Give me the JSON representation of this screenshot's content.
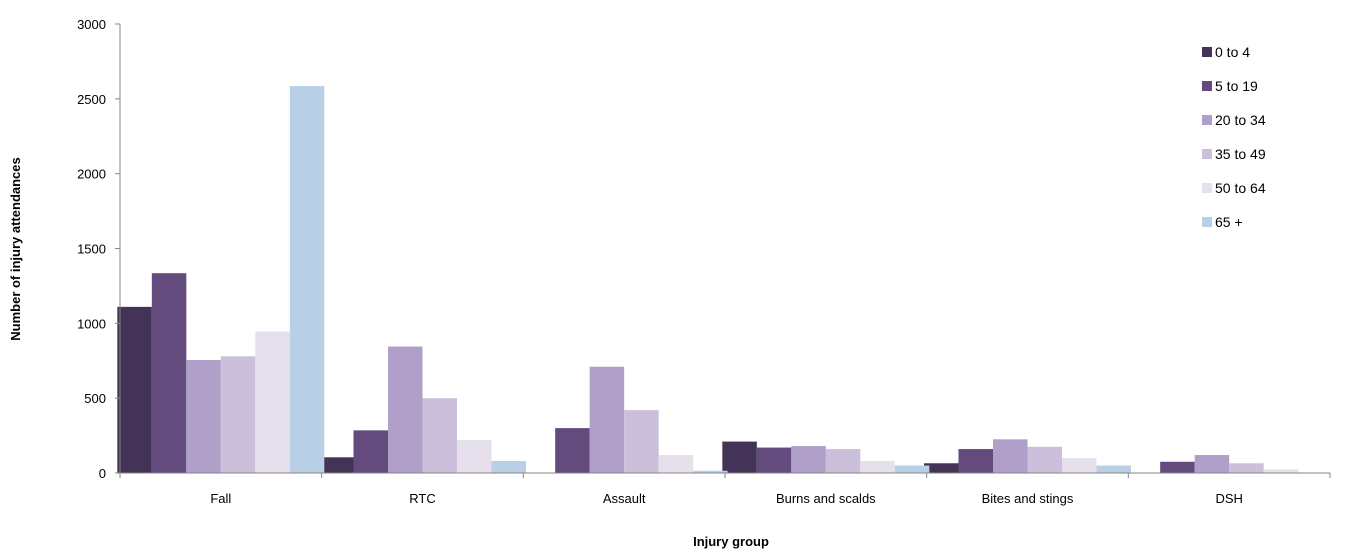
{
  "chart_data": {
    "type": "bar",
    "title": "",
    "xlabel": "Injury group",
    "ylabel": "Number of injury attendances",
    "ylim": [
      0,
      3000
    ],
    "yticks": [
      0,
      500,
      1000,
      1500,
      2000,
      2500,
      3000
    ],
    "grid": false,
    "legend_position": "right",
    "categories": [
      "Fall",
      "RTC",
      "Assault",
      "Burns and scalds",
      "Bites and stings",
      "DSH"
    ],
    "series": [
      {
        "name": "0 to 4",
        "color": "#433356",
        "values": [
          1110,
          105,
          0,
          210,
          65,
          0
        ]
      },
      {
        "name": "5 to 19",
        "color": "#634b7d",
        "values": [
          1335,
          285,
          300,
          170,
          160,
          75
        ]
      },
      {
        "name": "20 to 34",
        "color": "#b09fc8",
        "values": [
          755,
          845,
          710,
          180,
          225,
          120
        ]
      },
      {
        "name": "35 to 49",
        "color": "#cbbfdc",
        "values": [
          780,
          500,
          420,
          160,
          175,
          65
        ]
      },
      {
        "name": "50 to 64",
        "color": "#e5e0ec",
        "values": [
          945,
          220,
          120,
          80,
          100,
          25
        ]
      },
      {
        "name": "65 +",
        "color": "#b9cfe6",
        "values": [
          2585,
          80,
          15,
          50,
          50,
          0
        ]
      }
    ]
  }
}
